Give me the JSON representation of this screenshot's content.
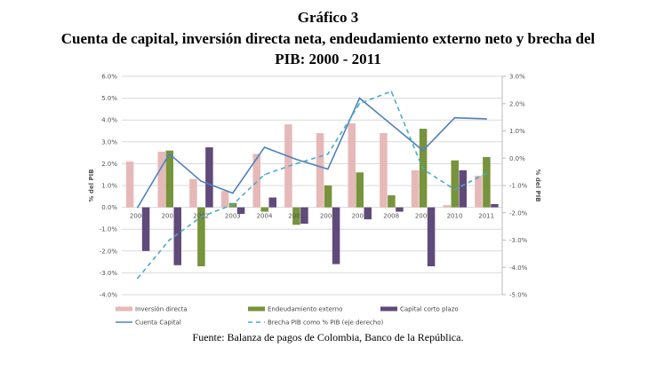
{
  "title": {
    "line1": "Gráfico 3",
    "line2": "Cuenta de capital, inversión directa neta, endeudamiento externo neto y brecha del",
    "line3": "PIB: 2000 - 2011"
  },
  "footer": "Fuente: Balanza de pagos de Colombia, Banco de la República.",
  "colors": {
    "inversion": "#e6b9b8",
    "endeudamiento": "#77933c",
    "capital": "#604a7b",
    "cuenta": "#4f81bd",
    "brecha": "#4bacc6",
    "grid": "#d9d9d9"
  },
  "chart_data": {
    "type": "bar",
    "categories": [
      "2000",
      "2001",
      "2002",
      "2003",
      "2004",
      "2005",
      "2006",
      "2007",
      "2008",
      "2009",
      "2010",
      "2011"
    ],
    "ylabel": "% del PIB",
    "y2label": "% del PIB",
    "ylim": [
      -4,
      6
    ],
    "y2lim": [
      -5,
      3
    ],
    "yticks": [
      "6.0%",
      "5.0%",
      "4.0%",
      "3.0%",
      "2.0%",
      "1.0%",
      "0.0%",
      "-1.0%",
      "-2.0%",
      "-3.0%",
      "-4.0%"
    ],
    "y2ticks": [
      "3.0%",
      "2.0%",
      "1.0%",
      "0.0%",
      "-1.0%",
      "-2.0%",
      "-3.0%",
      "-4.0%",
      "-5.0%"
    ],
    "grid": true,
    "legend_position": "bottom",
    "series": [
      {
        "name": "Inversión directa",
        "kind": "bar",
        "axis": "left",
        "values": [
          2.1,
          2.55,
          1.3,
          0.75,
          2.45,
          3.8,
          3.4,
          3.85,
          3.4,
          1.7,
          0.1,
          1.45
        ]
      },
      {
        "name": "Endeudamiento externo",
        "kind": "bar",
        "axis": "left",
        "values": [
          0,
          2.6,
          -2.7,
          0.2,
          -0.2,
          -0.8,
          1.0,
          1.6,
          0.55,
          3.6,
          2.15,
          2.3
        ]
      },
      {
        "name": "Capital corto plazo",
        "kind": "bar",
        "axis": "left",
        "values": [
          -2.0,
          -2.65,
          2.75,
          -0.3,
          0.45,
          -0.75,
          -2.6,
          -0.55,
          -0.2,
          -2.7,
          1.7,
          0.15
        ]
      },
      {
        "name": "Cuenta Capital",
        "kind": "line",
        "axis": "left",
        "values": [
          0.0,
          2.45,
          1.2,
          0.65,
          2.75,
          2.2,
          1.75,
          5.0,
          3.8,
          2.6,
          4.1,
          4.05
        ]
      },
      {
        "name": "Brecha PIB como % PIB (eje derecho)",
        "kind": "dashed-line",
        "axis": "right",
        "values": [
          -4.4,
          -3.0,
          -2.15,
          -1.7,
          -0.6,
          -0.2,
          0.15,
          2.0,
          2.45,
          -0.4,
          -1.15,
          -0.55
        ]
      }
    ]
  }
}
